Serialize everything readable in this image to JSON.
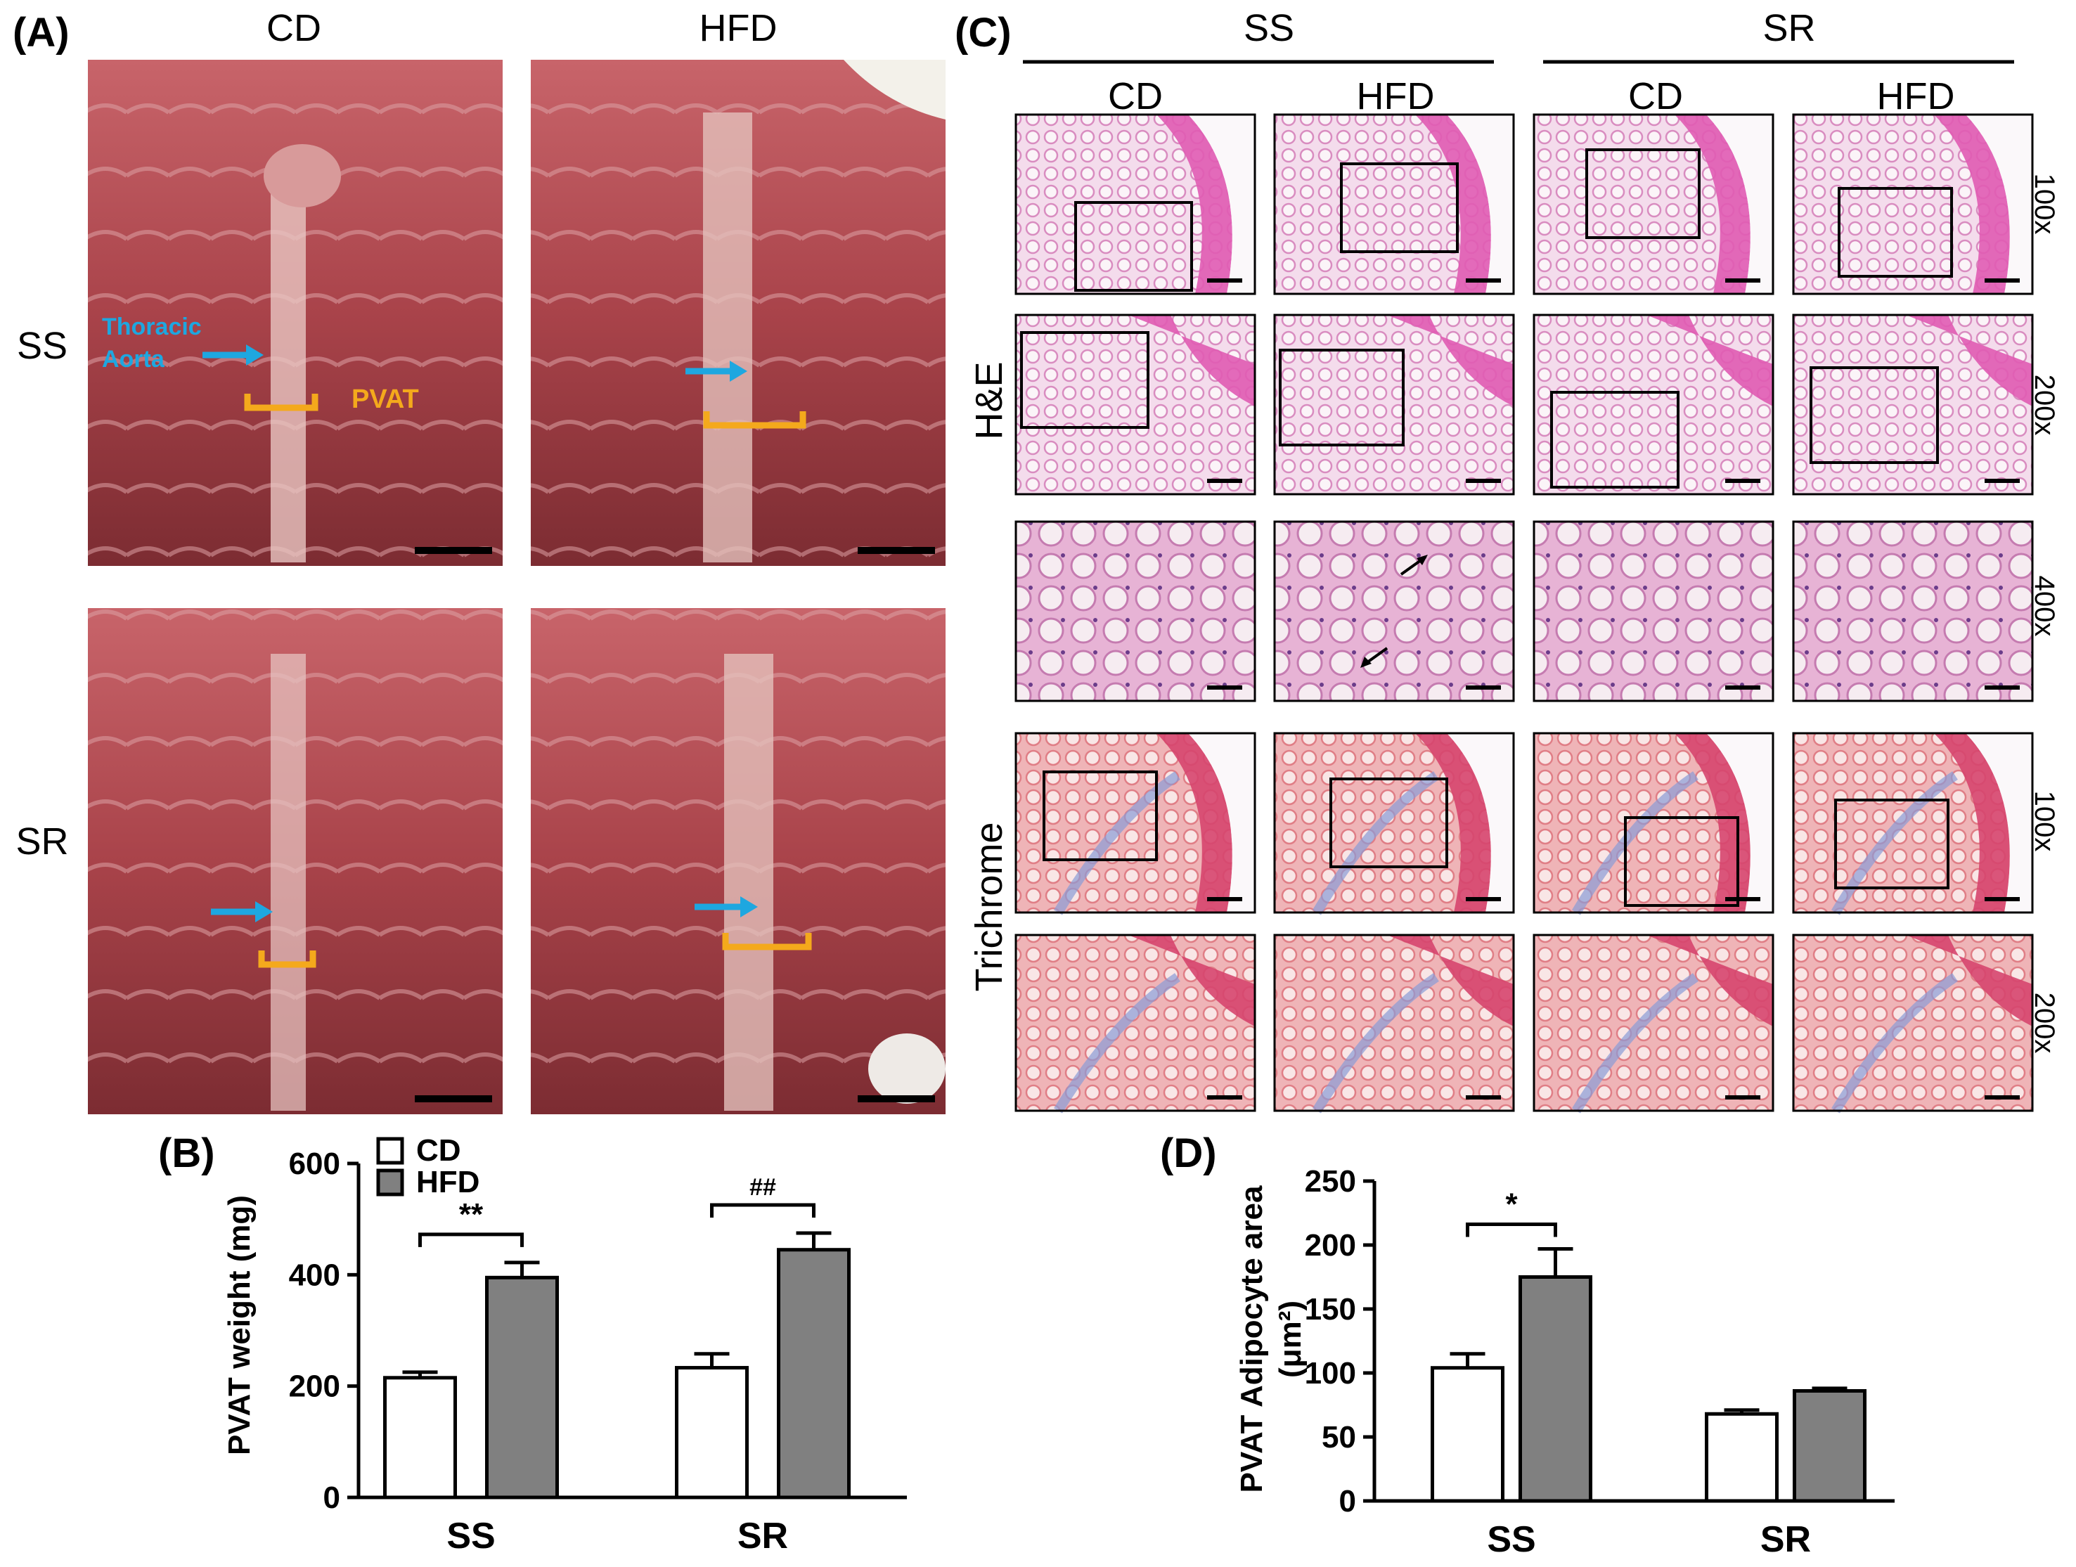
{
  "panel_a": {
    "letter": "(A)",
    "columns": [
      "CD",
      "HFD"
    ],
    "rows": [
      "SS",
      "SR"
    ],
    "annotations": {
      "aorta_label_1": "Thoracic",
      "aorta_label_2": "Aorta",
      "pvat_label": "PVAT"
    }
  },
  "panel_c": {
    "letter": "(C)",
    "groups": [
      "SS",
      "SR"
    ],
    "columns": [
      "CD",
      "HFD",
      "CD",
      "HFD"
    ],
    "stains": [
      "H&E",
      "Trichrome"
    ],
    "magnifications": [
      "100x",
      "200x",
      "400x",
      "100x",
      "200x"
    ]
  },
  "colors": {
    "cd_bar": "#ffffff",
    "hfd_bar": "#808080",
    "aorta_arrow": "#1ea7e0",
    "pvat_bracket": "#f4a91c",
    "he_tissue": "#e9a6cf",
    "he_muscle": "#e05bb3",
    "trichrome_tissue": "#ec9aa6",
    "trichrome_muscle": "#d6456e",
    "photo_tissue": "#b04a4f"
  },
  "chart_data": [
    {
      "type": "bar",
      "panel": "(B)",
      "categories": [
        "SS",
        "SR"
      ],
      "series": [
        {
          "name": "CD",
          "values": [
            215,
            233
          ],
          "errors": [
            10,
            25
          ]
        },
        {
          "name": "HFD",
          "values": [
            395,
            445
          ],
          "errors": [
            27,
            30
          ]
        }
      ],
      "ylabel": "PVAT weight (mg)",
      "ylim": [
        0,
        600
      ],
      "yticks": [
        "0",
        "200",
        "400",
        "600"
      ],
      "legend": [
        "CD",
        "HFD"
      ],
      "legend_position": "top-left",
      "significance": [
        "**",
        "##"
      ]
    },
    {
      "type": "bar",
      "panel": "(D)",
      "categories": [
        "SS",
        "SR"
      ],
      "series": [
        {
          "name": "CD",
          "values": [
            104,
            68
          ],
          "errors": [
            11,
            3
          ]
        },
        {
          "name": "HFD",
          "values": [
            175,
            86
          ],
          "errors": [
            22,
            2
          ]
        }
      ],
      "ylabel_line1": "PVAT Adipocyte area",
      "ylabel_line2": "(μm²)",
      "ylim": [
        0,
        250
      ],
      "yticks": [
        "0",
        "50",
        "100",
        "150",
        "200",
        "250"
      ],
      "significance": [
        "*"
      ]
    }
  ]
}
